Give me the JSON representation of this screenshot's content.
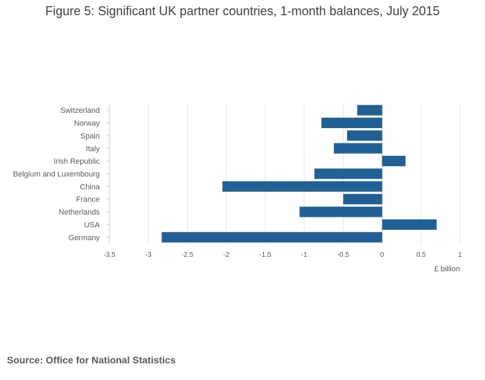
{
  "chart_data": {
    "type": "bar",
    "orientation": "horizontal",
    "title": "Figure 5: Significant UK partner countries, 1-month balances, July 2015",
    "xlabel": "£ billion",
    "ylabel": "",
    "xlim": [
      -3.5,
      1
    ],
    "xticks": [
      -3.5,
      -3,
      -2.5,
      -2,
      -1.5,
      -1,
      -0.5,
      0,
      0.5,
      1
    ],
    "xtick_labels": [
      "-3.5",
      "-3",
      "-2.5",
      "-2",
      "-1.5",
      "-1",
      "-0.5",
      "0",
      "0.5",
      "1"
    ],
    "grid": true,
    "categories": [
      "Switzerland",
      "Norway",
      "Spain",
      "Italy",
      "Irish Republic",
      "Belgium and Luxembourg",
      "China",
      "France",
      "Netherlands",
      "USA",
      "Germany"
    ],
    "values": [
      -0.32,
      -0.78,
      -0.45,
      -0.62,
      0.3,
      -0.87,
      -2.05,
      -0.5,
      -1.06,
      0.7,
      -2.83
    ],
    "bar_color": "#206095"
  },
  "source": "Source: Office for National Statistics"
}
